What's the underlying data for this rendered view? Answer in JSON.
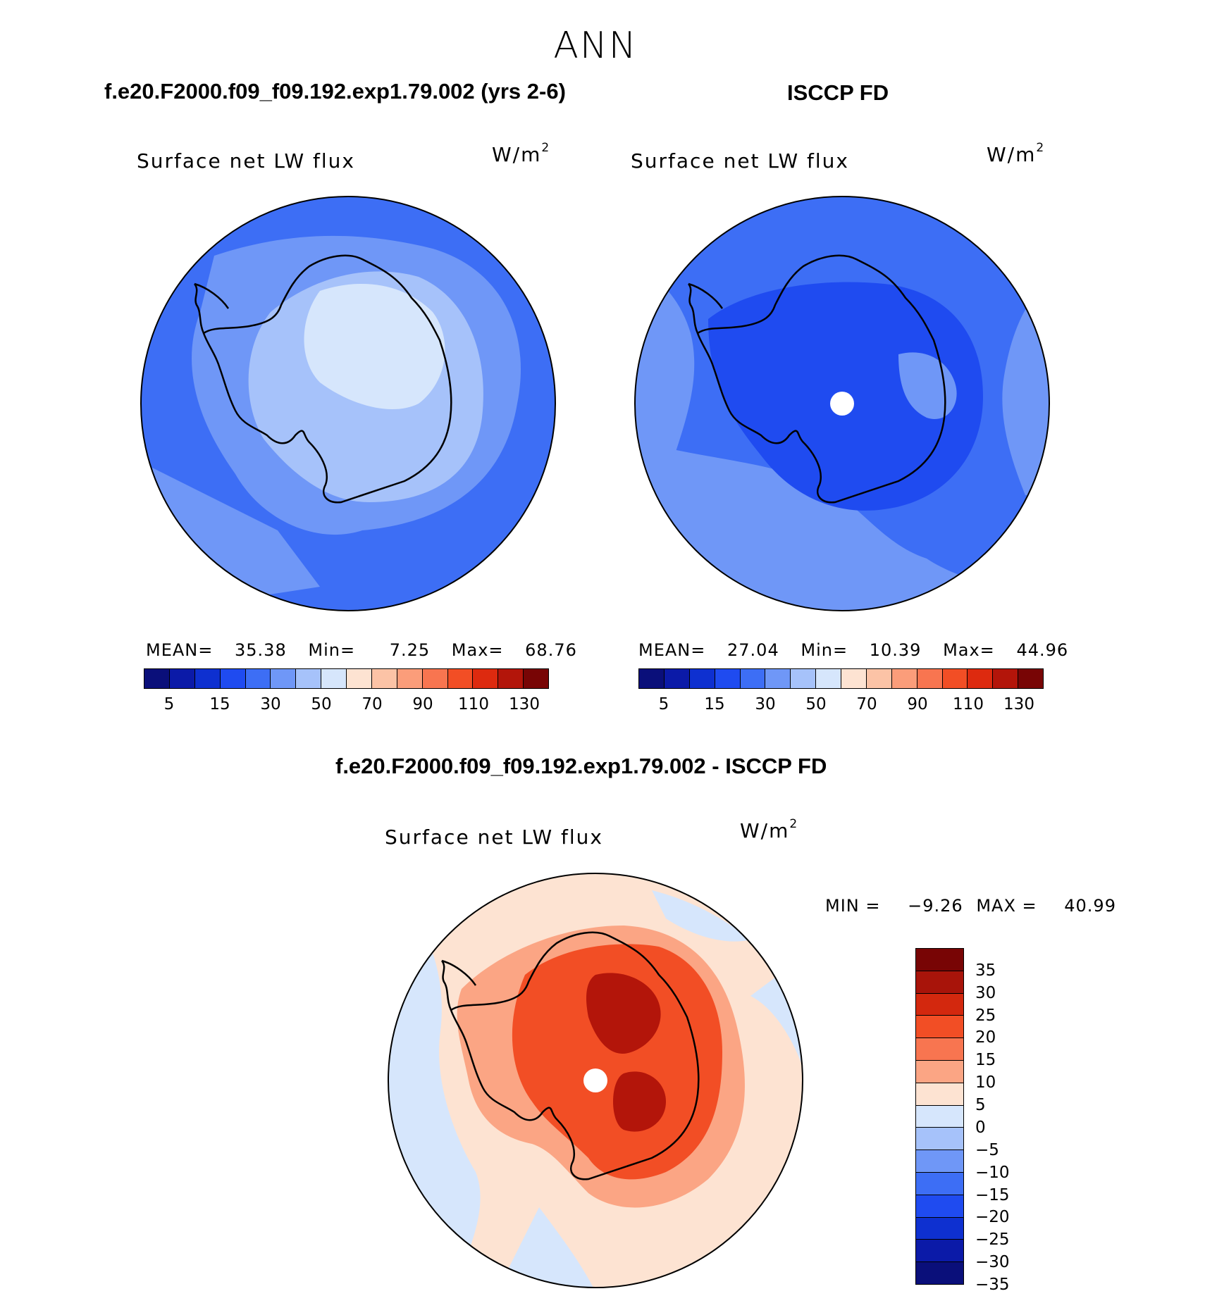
{
  "season": "ANN",
  "panels": [
    {
      "title": "f.e20.F2000.f09_f09.192.exp1.79.002 (yrs 2-6)",
      "variable": "Surface net LW flux",
      "units": "W/m",
      "units_sup": "2",
      "stats": {
        "mean_label": "MEAN=",
        "mean": "35.38",
        "min_label": "Min=",
        "min": "7.25",
        "max_label": "Max=",
        "max": "68.76"
      },
      "dominant_field": "-15"
    },
    {
      "title": "ISCCP FD",
      "variable": "Surface net LW flux",
      "units": "W/m",
      "units_sup": "2",
      "stats": {
        "mean_label": "MEAN=",
        "mean": "27.04",
        "min_label": "Min=",
        "min": "10.39",
        "max_label": "Max=",
        "max": "44.96"
      },
      "dominant_field": "-20"
    },
    {
      "title": "f.e20.F2000.f09_f09.192.exp1.79.002 - ISCCP FD",
      "variable": "Surface net LW flux",
      "units": "W/m",
      "units_sup": "2",
      "stats": {
        "min_label": "MIN =",
        "min": "−9.26",
        "max_label": "MAX =",
        "max": "40.99"
      }
    }
  ],
  "abs_colorbar": {
    "colors": [
      "#0a0f7a",
      "#0b1aa8",
      "#0e30d0",
      "#1f4bf0",
      "#3d6ef5",
      "#6f97f7",
      "#a6c2fa",
      "#d6e6fc",
      "#fde3d2",
      "#fcc3a6",
      "#fb9d7a",
      "#f87550",
      "#f24e25",
      "#dd2a0f",
      "#b3150a",
      "#780505"
    ],
    "labels": [
      "5",
      "15",
      "30",
      "50",
      "70",
      "90",
      "110",
      "130"
    ]
  },
  "diff_colorbar": {
    "colors": [
      "#780505",
      "#a8140a",
      "#d3280e",
      "#f24e25",
      "#f87550",
      "#fba584",
      "#fde3d2",
      "#d6e6fc",
      "#a6c2fa",
      "#6f97f7",
      "#3d6ef5",
      "#1f4bf0",
      "#0e30d0",
      "#0b1aa8",
      "#0a0f7a"
    ],
    "labels": [
      "35",
      "30",
      "25",
      "20",
      "15",
      "10",
      "5",
      "0",
      "−5",
      "−10",
      "−15",
      "−20",
      "−25",
      "−30",
      "−35"
    ]
  },
  "map_colors": {
    "ocean_model": "#3d6ef5",
    "mid_model": "#6f97f7",
    "light_model": "#a6c2fa",
    "ice_model": "#d6e6fc",
    "ocean_obs": "#3d6ef5",
    "mid_obs": "#1f4bf0",
    "ice_obs": "#6f97f7",
    "diff_bg": "#fde3d2",
    "diff_blue": "#d6e6fc",
    "diff_ring": "#fba584",
    "diff_inner": "#f24e25",
    "diff_core": "#b3150a"
  }
}
